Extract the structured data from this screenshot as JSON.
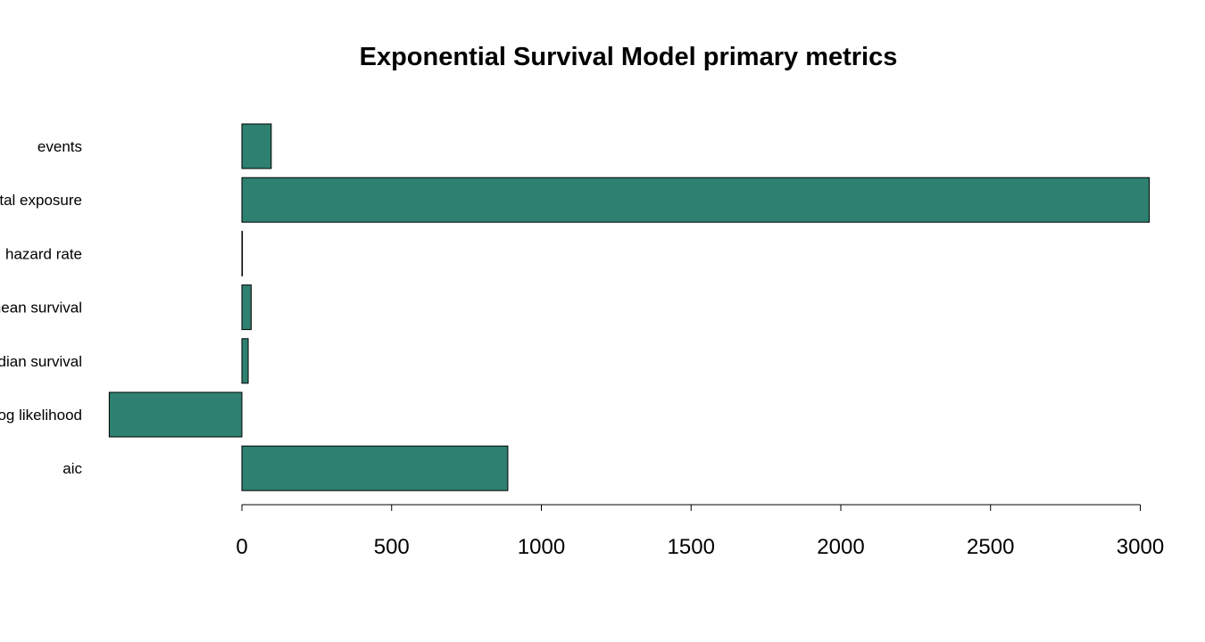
{
  "chart_data": {
    "type": "bar",
    "orientation": "horizontal",
    "title": "Exponential Survival Model primary metrics",
    "xlabel": "",
    "ylabel": "",
    "categories": [
      "events",
      "total exposure",
      "hazard rate",
      "mean survival",
      "median survival",
      "log likelihood",
      "aic"
    ],
    "values": [
      98,
      3030,
      0.032,
      31,
      21,
      -443,
      888
    ],
    "xlim": [
      -443,
      3030
    ],
    "x_ticks": [
      0,
      500,
      1000,
      1500,
      2000,
      2500,
      3000
    ],
    "x_tick_labels": [
      "0",
      "500",
      "1000",
      "1500",
      "2000",
      "2500",
      "3000"
    ],
    "bar_color": "#2E8070",
    "grid": false,
    "legend": "none"
  }
}
